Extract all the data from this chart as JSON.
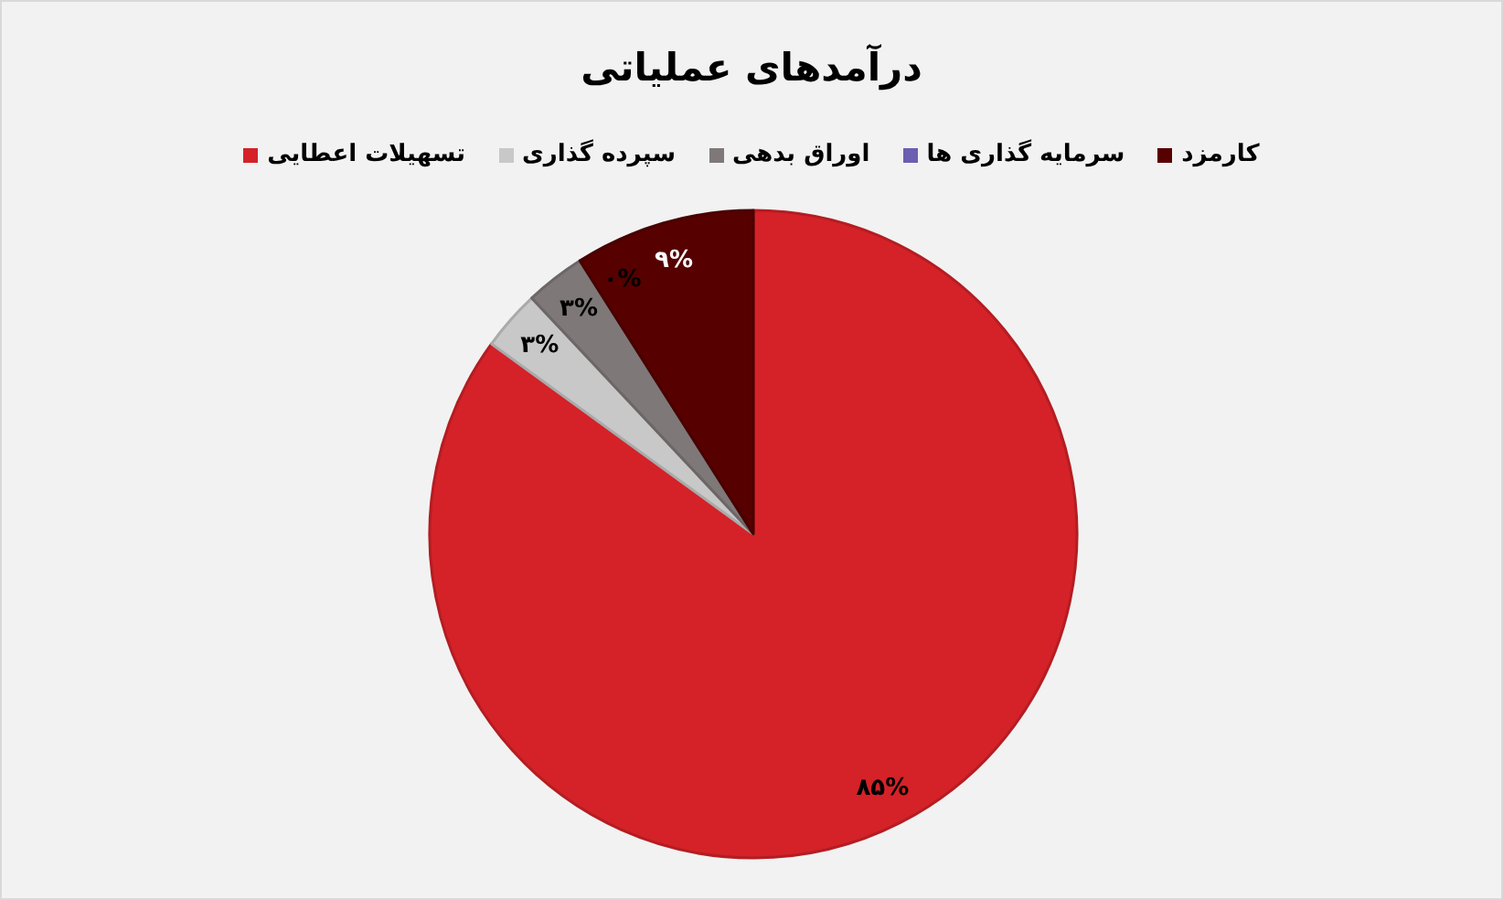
{
  "chart_data": {
    "type": "pie",
    "title": "درآمدهای عملیاتی",
    "categories": [
      "تسهیلات اعطایی",
      "سپرده گذاری",
      "اوراق بدهی",
      "سرمایه گذاری ها",
      "کارمزد"
    ],
    "values": [
      85,
      3,
      3,
      0,
      9
    ],
    "colors": [
      "#d42228",
      "#c8c8c8",
      "#7f7878",
      "#6a5fb0",
      "#560000"
    ],
    "value_labels": [
      "۸۵%",
      "۳%",
      "۳%",
      "۰%",
      "۹%"
    ],
    "legend": "top"
  }
}
